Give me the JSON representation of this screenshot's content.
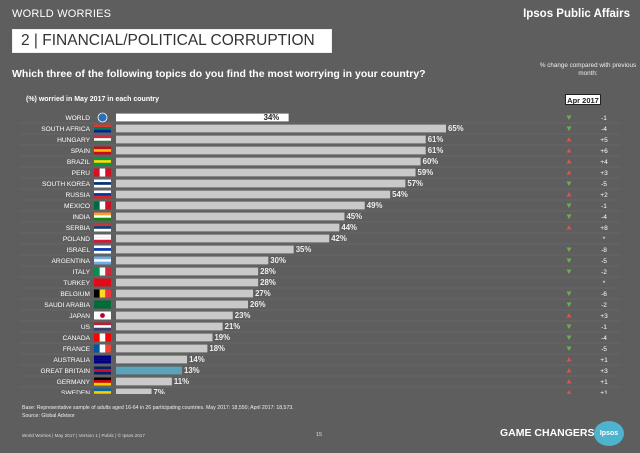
{
  "header": {
    "section_label": "WORLD WORRIES",
    "brand": "Ipsos Public Affairs",
    "title": "2 | FINANCIAL/POLITICAL CORRUPTION",
    "question": "Which three of the following topics do you find the most worrying in your country?",
    "change_note": "% change compared with previous month:",
    "sub_label": "(%) worried in May 2017 in each country",
    "apr_label": "Apr 2017"
  },
  "footer": {
    "base_note": "Base: Representative sample of adults aged 16-64 in 26 participating countries. May 2017: 18,550; April 2017: 18,573.",
    "source_note": "Source: Global Advisor",
    "footer_text": "World Worries | May 2017 | Version 1 | Public | © Ipsos 2017",
    "page_number": "15",
    "slogan": "GAME CHANGERS",
    "logo_text": "Ipsos"
  },
  "colors": {
    "bar_default": "#c9c9c9",
    "bar_world": "#ffffff",
    "bar_great_britain": "#5ba3bb",
    "up_arrow": "#d9534f",
    "down_arrow": "#6ab04c",
    "background": "#5e5e5e"
  },
  "chart_data": {
    "type": "bar",
    "orientation": "horizontal",
    "xlim": [
      0,
      100
    ],
    "categories": [
      "WORLD",
      "SOUTH AFRICA",
      "HUNGARY",
      "SPAIN",
      "BRAZIL",
      "PERU",
      "SOUTH KOREA",
      "RUSSIA",
      "MEXICO",
      "INDIA",
      "SERBIA",
      "POLAND",
      "ISRAEL",
      "ARGENTINA",
      "ITALY",
      "TURKEY",
      "BELGIUM",
      "SAUDI ARABIA",
      "JAPAN",
      "US",
      "CANADA",
      "FRANCE",
      "AUSTRALIA",
      "GREAT BRITAIN",
      "GERMANY",
      "SWEDEN"
    ],
    "values": [
      34,
      65,
      61,
      61,
      60,
      59,
      57,
      54,
      49,
      45,
      44,
      42,
      35,
      30,
      28,
      28,
      27,
      26,
      23,
      21,
      19,
      18,
      14,
      13,
      11,
      7
    ],
    "value_labels": [
      "34%",
      "65%",
      "61%",
      "61%",
      "60%",
      "59%",
      "57%",
      "54%",
      "49%",
      "45%",
      "44%",
      "42%",
      "35%",
      "30%",
      "28%",
      "28%",
      "27%",
      "26%",
      "23%",
      "21%",
      "19%",
      "18%",
      "14%",
      "13%",
      "11%",
      "7%"
    ],
    "change_direction": [
      "down",
      "down",
      "up",
      "up",
      "up",
      "up",
      "down",
      "up",
      "down",
      "down",
      "up",
      "none",
      "down",
      "down",
      "down",
      "none",
      "down",
      "down",
      "up",
      "down",
      "down",
      "down",
      "up",
      "up",
      "up",
      "up"
    ],
    "change_labels": [
      "-1",
      "-4",
      "+5",
      "+6",
      "+4",
      "+3",
      "-5",
      "+2",
      "-1",
      "-4",
      "+8",
      "*",
      "-8",
      "-5",
      "-2",
      "*",
      "-6",
      "-2",
      "+3",
      "-1",
      "-4",
      "-5",
      "+1",
      "+3",
      "+1",
      "+1"
    ],
    "flag_colors": [
      [
        "#2d6fb5",
        "#ffffff",
        "#2d6fb5"
      ],
      [
        "#de3831",
        "#007a4d",
        "#002395"
      ],
      [
        "#cd2a3e",
        "#ffffff",
        "#436f4d"
      ],
      [
        "#c60b1e",
        "#ffc400",
        "#c60b1e"
      ],
      [
        "#009c3b",
        "#ffdf00",
        "#009c3b"
      ],
      [
        "#d91023",
        "#ffffff",
        "#d91023"
      ],
      [
        "#ffffff",
        "#003478",
        "#ffffff"
      ],
      [
        "#ffffff",
        "#0039a6",
        "#d52b1e"
      ],
      [
        "#006847",
        "#ffffff",
        "#ce1126"
      ],
      [
        "#ff9933",
        "#ffffff",
        "#138808"
      ],
      [
        "#c6363c",
        "#0c4076",
        "#ffffff"
      ],
      [
        "#ffffff",
        "#ffffff",
        "#dc143c"
      ],
      [
        "#ffffff",
        "#0038b8",
        "#ffffff"
      ],
      [
        "#74acdf",
        "#ffffff",
        "#74acdf"
      ],
      [
        "#009246",
        "#ffffff",
        "#ce2b37"
      ],
      [
        "#e30a17",
        "#e30a17",
        "#e30a17"
      ],
      [
        "#000000",
        "#fdda24",
        "#ef3340"
      ],
      [
        "#006c35",
        "#006c35",
        "#006c35"
      ],
      [
        "#ffffff",
        "#ffffff",
        "#ffffff"
      ],
      [
        "#b22234",
        "#ffffff",
        "#3c3b6e"
      ],
      [
        "#ff0000",
        "#ffffff",
        "#ff0000"
      ],
      [
        "#0055a4",
        "#ffffff",
        "#ef4135"
      ],
      [
        "#00008b",
        "#00008b",
        "#00008b"
      ],
      [
        "#012169",
        "#c8102e",
        "#012169"
      ],
      [
        "#000000",
        "#dd0000",
        "#ffce00"
      ],
      [
        "#006aa7",
        "#fecc00",
        "#006aa7"
      ]
    ],
    "flag_layout": [
      "globe",
      "horizontal",
      "horizontal",
      "horizontal",
      "horizontal",
      "vertical",
      "horizontal",
      "horizontal",
      "vertical",
      "horizontal",
      "horizontal",
      "horizontal",
      "horizontal",
      "horizontal",
      "vertical",
      "horizontal",
      "vertical",
      "horizontal",
      "disc",
      "horizontal",
      "vertical",
      "vertical",
      "horizontal",
      "horizontal",
      "horizontal",
      "horizontal"
    ]
  }
}
